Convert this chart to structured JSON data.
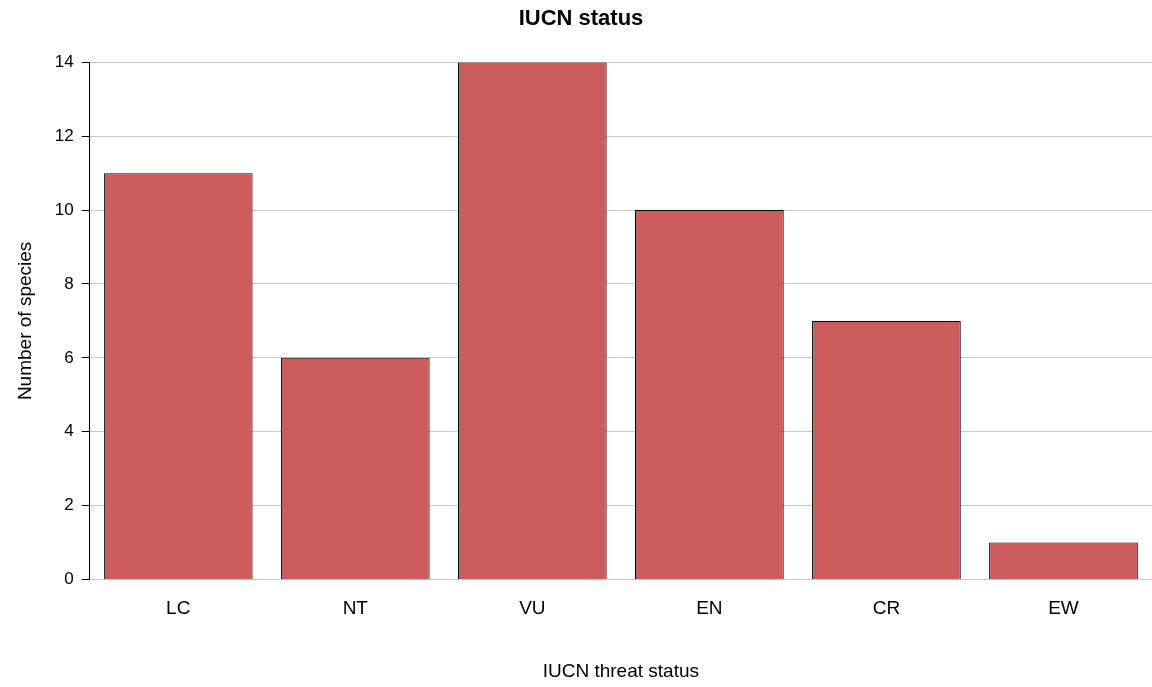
{
  "chart_data": {
    "type": "bar",
    "title": "IUCN status",
    "xlabel": "IUCN threat status",
    "ylabel": "Number of species",
    "categories": [
      "LC",
      "NT",
      "VU",
      "EN",
      "CR",
      "EW"
    ],
    "values": [
      11,
      6,
      14,
      10,
      7,
      1
    ],
    "color": "#cd5c5c",
    "ylim": [
      0,
      14
    ],
    "yticks": [
      0,
      2,
      4,
      6,
      8,
      10,
      12,
      14
    ],
    "grid": "y"
  }
}
